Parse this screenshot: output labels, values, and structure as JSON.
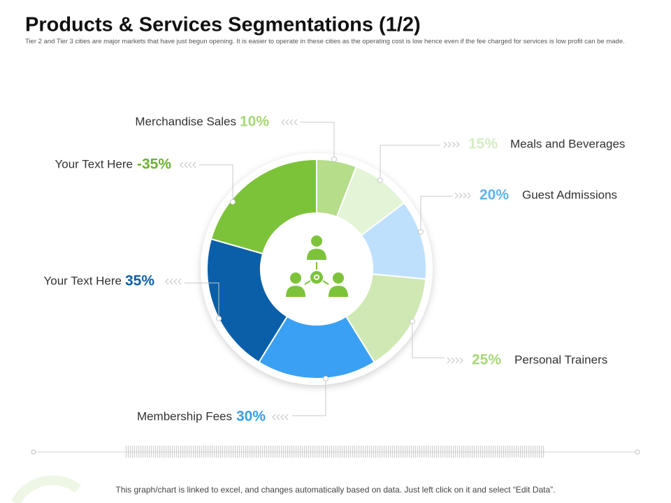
{
  "title": "Products & Services Segmentations (1/2)",
  "subtitle": "Tier 2 and Tier 3 cities are major markets that have just begun opening. It is easier to operate in these cities as the operating cost is low hence even if the fee charged for services is low profit can be made.",
  "footer": "This graph/chart is linked to excel, and changes automatically based on data. Just left click on it and select “Edit Data”.",
  "chart_data": {
    "type": "pie",
    "categories": [
      "Merchandise Sales",
      "Meals and Beverages",
      "Guest Admissions",
      "Personal Trainers",
      "Membership Fees",
      "Your Text Here",
      "Your Text Here"
    ],
    "values": [
      10,
      15,
      20,
      25,
      30,
      35,
      -35
    ],
    "value_labels": [
      "10%",
      "15%",
      "20%",
      "25%",
      "30%",
      "35%",
      "-35%"
    ],
    "colors": [
      "#b5dd8a",
      "#e4f4d6",
      "#bfe0fd",
      "#cfe8b4",
      "#3aa0f3",
      "#0a5fa8",
      "#7cc33a"
    ],
    "label_colors": [
      "#a7d879",
      "#d5ecc2",
      "#5db4f0",
      "#a7d879",
      "#3a9ee8",
      "#0f5fa8",
      "#6ab22e"
    ]
  }
}
